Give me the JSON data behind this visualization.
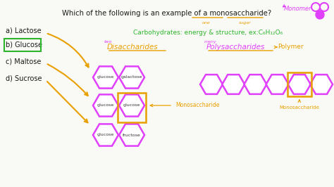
{
  "bg_color": "#f5f5f0",
  "title_text": "Which of the following is an example of a monosaccharide?",
  "title_color": "#1a1a1a",
  "monomer_label": "Monomer",
  "monomer_color": "#e040fb",
  "one_label": "one",
  "sugar_label": "sugar",
  "underline_color": "#e8a000",
  "carb_text": "Carbohydrates: energy & structure, ex:C₆H₁₂O₆",
  "carb_color": "#2db52d",
  "disaccharides_label": "Disaccharides",
  "two_label": "two",
  "poly_label": "Polysaccharides",
  "poly_label_color": "#e040fb",
  "many_label": "many",
  "polymer_label": "Polymer",
  "polymer_arrow_color": "#e8a000",
  "orange_color": "#e8a000",
  "options": [
    "a) Lactose",
    "b) Glucose",
    "c) Maltose",
    "d) Sucrose"
  ],
  "option_color": "#1a1a1a",
  "glucose_box_color": "#2db52d",
  "hex_color": "#e040fb",
  "hex_lw": 1.8,
  "arrow_color": "#e8a000",
  "monosaccharide_label": "Monosaccharide",
  "monosaccharide_label2": "Monosaccharide"
}
